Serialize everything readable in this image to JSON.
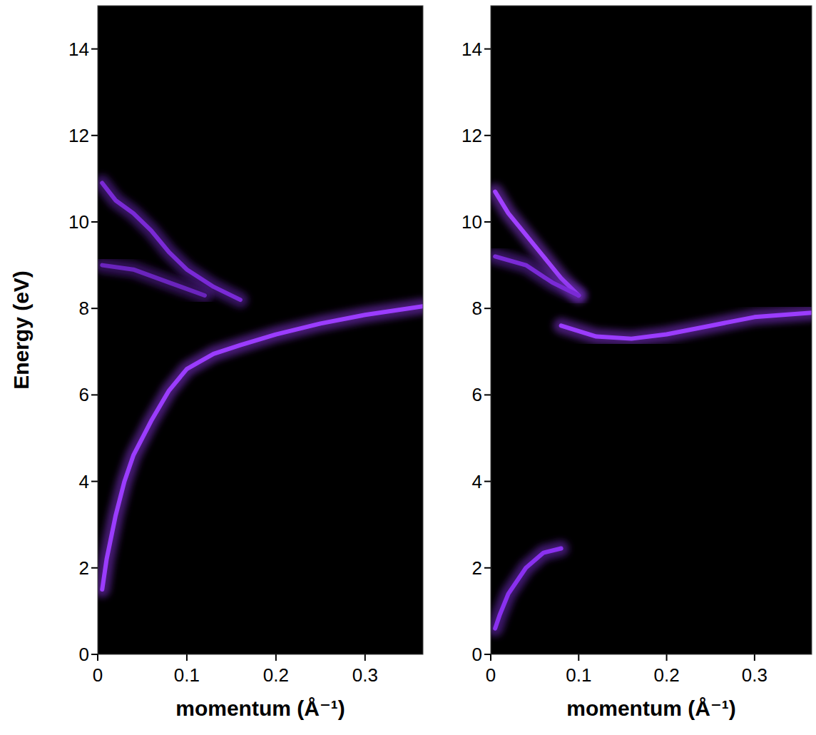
{
  "chart_data": [
    {
      "type": "line",
      "xlabel": "momentum (Å⁻¹)",
      "ylabel": "Energy (eV)",
      "xlim": [
        0,
        0.365
      ],
      "ylim": [
        0,
        15
      ],
      "xticks": [
        0,
        0.1,
        0.2,
        0.3
      ],
      "yticks": [
        0,
        2,
        4,
        6,
        8,
        10,
        12,
        14
      ],
      "series": [
        {
          "color": "#9b3cff",
          "x": [
            0.005,
            0.01,
            0.02,
            0.03,
            0.04,
            0.06,
            0.08,
            0.1,
            0.13,
            0.16,
            0.2,
            0.25,
            0.3,
            0.365
          ],
          "values": [
            1.5,
            2.2,
            3.2,
            4.0,
            4.6,
            5.4,
            6.1,
            6.6,
            6.95,
            7.15,
            7.4,
            7.65,
            7.85,
            8.05
          ]
        },
        {
          "color": "#7a2ad6",
          "x": [
            0.005,
            0.02,
            0.04,
            0.06,
            0.08,
            0.1,
            0.13,
            0.16
          ],
          "values": [
            10.9,
            10.5,
            10.2,
            9.8,
            9.3,
            8.9,
            8.5,
            8.2
          ]
        },
        {
          "color": "#6a24bd",
          "x": [
            0.005,
            0.04,
            0.08,
            0.12
          ],
          "values": [
            9.0,
            8.9,
            8.6,
            8.3
          ]
        }
      ]
    },
    {
      "type": "line",
      "xlabel": "momentum (Å⁻¹)",
      "xlim": [
        0,
        0.365
      ],
      "ylim": [
        0,
        15
      ],
      "xticks": [
        0,
        0.1,
        0.2,
        0.3
      ],
      "yticks": [
        0,
        2,
        4,
        6,
        8,
        10,
        12,
        14
      ],
      "series": [
        {
          "color": "#8a30f0",
          "x": [
            0.005,
            0.01,
            0.02,
            0.04,
            0.06,
            0.08
          ],
          "values": [
            0.6,
            0.9,
            1.4,
            2.0,
            2.35,
            2.45
          ]
        },
        {
          "color": "#9b3cff",
          "x": [
            0.08,
            0.12,
            0.16,
            0.2,
            0.25,
            0.3,
            0.365
          ],
          "values": [
            7.6,
            7.35,
            7.3,
            7.4,
            7.6,
            7.8,
            7.9
          ]
        },
        {
          "color": "#a040ff",
          "x": [
            0.005,
            0.02,
            0.04,
            0.06,
            0.08,
            0.1
          ],
          "values": [
            10.7,
            10.2,
            9.7,
            9.2,
            8.7,
            8.3
          ]
        },
        {
          "color": "#7a2ad6",
          "x": [
            0.005,
            0.04,
            0.07,
            0.1
          ],
          "values": [
            9.2,
            9.0,
            8.6,
            8.3
          ]
        }
      ]
    }
  ]
}
